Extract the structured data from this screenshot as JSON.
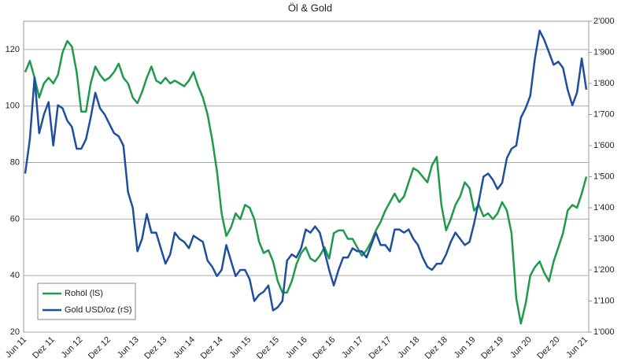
{
  "chart_data": {
    "type": "line",
    "title": "Öl & Gold",
    "categories": [
      "Jun 11",
      null,
      null,
      null,
      null,
      null,
      "Dez 11",
      null,
      null,
      null,
      null,
      null,
      "Jun 12",
      null,
      null,
      null,
      null,
      null,
      "Dez 12",
      null,
      null,
      null,
      null,
      null,
      "Jun 13",
      null,
      null,
      null,
      null,
      null,
      "Dez 13",
      null,
      null,
      null,
      null,
      null,
      "Jun 14",
      null,
      null,
      null,
      null,
      null,
      "Dez 14",
      null,
      null,
      null,
      null,
      null,
      "Jun 15",
      null,
      null,
      null,
      null,
      null,
      "Dez 15",
      null,
      null,
      null,
      null,
      null,
      "Jun 16",
      null,
      null,
      null,
      null,
      null,
      "Dez 16",
      null,
      null,
      null,
      null,
      null,
      "Jun 17",
      null,
      null,
      null,
      null,
      null,
      "Dez 17",
      null,
      null,
      null,
      null,
      null,
      "Jun 18",
      null,
      null,
      null,
      null,
      null,
      "Dez 18",
      null,
      null,
      null,
      null,
      null,
      "Jun 19",
      null,
      null,
      null,
      null,
      null,
      "Dez 19",
      null,
      null,
      null,
      null,
      null,
      "Jun 20",
      null,
      null,
      null,
      null,
      null,
      "Dez 20",
      null,
      null,
      null,
      null,
      null,
      "Jun 21"
    ],
    "series": [
      {
        "name": "Rohöl (lS)",
        "color": "#1f9a4b",
        "axis": "y",
        "values": [
          112,
          116,
          110,
          103,
          108,
          110,
          108,
          111,
          119,
          123,
          121,
          112,
          98,
          98,
          108,
          114,
          111,
          109,
          110,
          112,
          115,
          110,
          108,
          103,
          101,
          105,
          110,
          114,
          109,
          108,
          110,
          108,
          109,
          108,
          107,
          109,
          112,
          107,
          103,
          97,
          88,
          77,
          62,
          54,
          57,
          62,
          60,
          65,
          64,
          60,
          52,
          48,
          49,
          45,
          38,
          34,
          34,
          38,
          44,
          48,
          50,
          46,
          45,
          47,
          50,
          46,
          55,
          56,
          56,
          53,
          53,
          50,
          47,
          49,
          52,
          56,
          59,
          63,
          66,
          69,
          66,
          68,
          73,
          78,
          77,
          75,
          73,
          79,
          82,
          65,
          56,
          60,
          65,
          68,
          73,
          71,
          63,
          65,
          61,
          62,
          60,
          62,
          66,
          63,
          55,
          32,
          23,
          30,
          40,
          43,
          45,
          41,
          38,
          45,
          50,
          55,
          63,
          65,
          64,
          69,
          75
        ]
      },
      {
        "name": "Gold USD/oz (rS)",
        "color": "#1f4ea0",
        "axis": "y2",
        "values": [
          1510,
          1620,
          1820,
          1640,
          1700,
          1740,
          1600,
          1730,
          1720,
          1680,
          1660,
          1590,
          1590,
          1620,
          1690,
          1770,
          1720,
          1700,
          1670,
          1640,
          1630,
          1600,
          1450,
          1400,
          1260,
          1300,
          1380,
          1320,
          1320,
          1270,
          1220,
          1250,
          1320,
          1300,
          1290,
          1270,
          1310,
          1300,
          1290,
          1230,
          1210,
          1180,
          1200,
          1280,
          1230,
          1180,
          1200,
          1200,
          1170,
          1100,
          1120,
          1130,
          1150,
          1070,
          1080,
          1100,
          1230,
          1250,
          1240,
          1270,
          1330,
          1320,
          1340,
          1320,
          1260,
          1200,
          1150,
          1200,
          1240,
          1240,
          1270,
          1260,
          1260,
          1240,
          1280,
          1320,
          1280,
          1280,
          1260,
          1330,
          1330,
          1320,
          1330,
          1300,
          1280,
          1240,
          1210,
          1200,
          1220,
          1220,
          1250,
          1290,
          1320,
          1300,
          1280,
          1290,
          1350,
          1420,
          1500,
          1510,
          1490,
          1460,
          1480,
          1560,
          1590,
          1600,
          1690,
          1720,
          1760,
          1880,
          1970,
          1940,
          1900,
          1860,
          1870,
          1850,
          1780,
          1730,
          1770,
          1880,
          1780
        ]
      }
    ],
    "ylim": [
      20,
      130
    ],
    "yticks": [
      20,
      40,
      60,
      80,
      100,
      120
    ],
    "y2lim": [
      1000,
      2000
    ],
    "y2ticks": [
      {
        "value": 1000,
        "label": "1'000"
      },
      {
        "value": 1100,
        "label": "1'100"
      },
      {
        "value": 1200,
        "label": "1'200"
      },
      {
        "value": 1300,
        "label": "1'300"
      },
      {
        "value": 1400,
        "label": "1'400"
      },
      {
        "value": 1500,
        "label": "1'500"
      },
      {
        "value": 1600,
        "label": "1'600"
      },
      {
        "value": 1700,
        "label": "1'700"
      },
      {
        "value": 1800,
        "label": "1'800"
      },
      {
        "value": 1900,
        "label": "1'900"
      },
      {
        "value": 2000,
        "label": "2'000"
      }
    ],
    "grid": true,
    "legend": "lower left"
  }
}
